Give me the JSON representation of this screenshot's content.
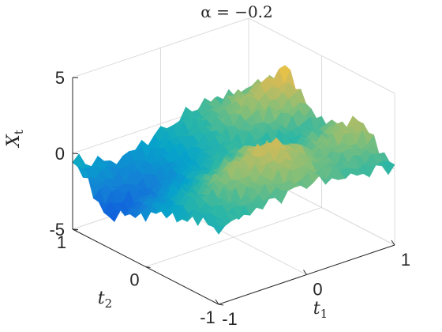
{
  "chart_data": {
    "type": "surface",
    "title": "α = −0.2",
    "xlabel": "t",
    "xlabel_sub": "1",
    "ylabel": "t",
    "ylabel_sub": "2",
    "zlabel": "X",
    "zlabel_sub": "t",
    "xlim": [
      -1,
      1
    ],
    "ylim": [
      -1,
      1
    ],
    "zlim": [
      -5,
      5
    ],
    "x_ticks": [
      "-1",
      "0",
      "1"
    ],
    "y_ticks": [
      "-1",
      "0",
      "1"
    ],
    "z_ticks": [
      "-5",
      "0",
      "5"
    ],
    "grid": true,
    "colormap": "parula",
    "colormap_colors": [
      "#352a87",
      "#0f5cdd",
      "#1481d6",
      "#06a4ca",
      "#2eb7a4",
      "#87bf77",
      "#d1bb59",
      "#fec832",
      "#f9fb0e"
    ],
    "surface": {
      "description_free_note": "",
      "t1": [
        -1.0,
        -0.5,
        0.0,
        0.5,
        1.0
      ],
      "t2": [
        -1.0,
        -0.5,
        0.0,
        0.5,
        1.0
      ],
      "values_rows_t2_by_t1": [
        [
          0.0,
          0.5,
          1.0,
          0.5,
          0.2
        ],
        [
          -0.5,
          1.5,
          2.5,
          1.0,
          2.0
        ],
        [
          -1.5,
          -0.5,
          0.5,
          0.0,
          0.5
        ],
        [
          -3.0,
          -2.0,
          -0.5,
          1.5,
          3.0
        ],
        [
          -0.5,
          -1.5,
          -0.5,
          0.5,
          0.0
        ]
      ]
    }
  }
}
